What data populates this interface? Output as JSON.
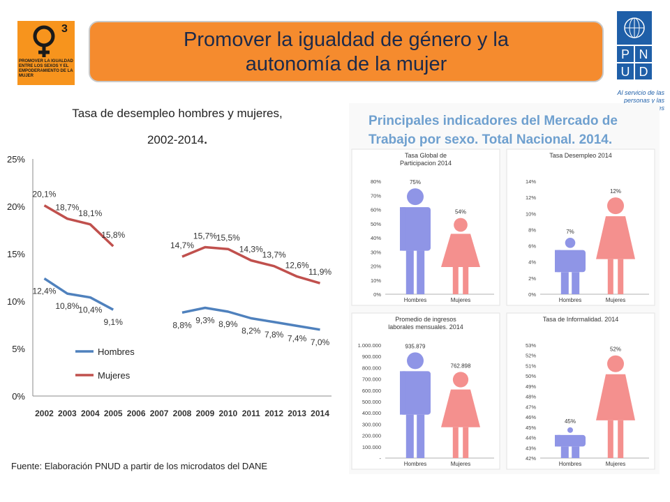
{
  "header": {
    "title": "Promover la igualdad de género y la autonomía de la mujer",
    "title_line1": "Promover la igualdad de género y la",
    "title_line2": "autonomía de la mujer",
    "mdg_number": "3",
    "mdg_caption": "PROMOVER LA IGUALDAD ENTRE LOS SEXOS Y EL EMPODERAMIENTO DE LA MUJER",
    "org_letters": [
      "P",
      "N",
      "U",
      "D"
    ],
    "org_tagline": "Al servicio de las personas y las naciones"
  },
  "colors": {
    "orange": "#f58b2e",
    "hombres": "#4f81bd",
    "mujeres": "#c0504d",
    "blue_org": "#1f5fa8",
    "info_blue": "#8f95e6",
    "info_pink": "#f4908e"
  },
  "left_chart_title_line1": "Tasa de desempleo hombres y mujeres,",
  "left_chart_title_line2": "2002-2014",
  "source": "Fuente: Elaboración PNUD a partir de los microdatos del DANE",
  "chart_data": [
    {
      "type": "line",
      "x": [
        "2002",
        "2003",
        "2004",
        "2005",
        "2006",
        "2007",
        "2008",
        "2009",
        "2010",
        "2011",
        "2012",
        "2013",
        "2014"
      ],
      "ylim": [
        0,
        25
      ],
      "yticks": [
        "0%",
        "5%",
        "10%",
        "15%",
        "20%",
        "25%"
      ],
      "legend_position": "bottom-left",
      "series": [
        {
          "name": "Hombres",
          "color": "#4f81bd",
          "values": [
            12.4,
            10.8,
            10.4,
            9.1,
            null,
            null,
            8.8,
            9.3,
            8.9,
            8.2,
            7.8,
            7.4,
            7.0
          ],
          "labels": [
            "12,4%",
            "10,8%",
            "10,4%",
            "9,1%",
            "",
            "",
            "8,8%",
            "9,3%",
            "8,9%",
            "8,2%",
            "7,8%",
            "7,4%",
            "7,0%"
          ]
        },
        {
          "name": "Mujeres",
          "color": "#c0504d",
          "values": [
            20.1,
            18.7,
            18.1,
            15.8,
            null,
            null,
            14.7,
            15.7,
            15.5,
            14.3,
            13.7,
            12.6,
            11.9
          ],
          "labels": [
            "20,1%",
            "18,7%",
            "18,1%",
            "15,8%",
            "",
            "",
            "14,7%",
            "15,7%",
            "15,5%",
            "14,3%",
            "13,7%",
            "12,6%",
            "11,9%"
          ]
        }
      ]
    },
    {
      "type": "bar",
      "title": "Tasa Global de Participacion 2014",
      "categories": [
        "Hombres",
        "Mujeres"
      ],
      "values": [
        75,
        54
      ],
      "labels": [
        "75%",
        "54%"
      ],
      "ylim": [
        0,
        80
      ],
      "yticks": [
        "0%",
        "10%",
        "20%",
        "30%",
        "40%",
        "50%",
        "60%",
        "70%",
        "80%"
      ]
    },
    {
      "type": "bar",
      "title": "Tasa Desempleo 2014",
      "categories": [
        "Hombres",
        "Mujeres"
      ],
      "values": [
        7,
        12
      ],
      "labels": [
        "7%",
        "12%"
      ],
      "ylim": [
        0,
        14
      ],
      "yticks": [
        "0%",
        "2%",
        "4%",
        "6%",
        "8%",
        "10%",
        "12%",
        "14%"
      ]
    },
    {
      "type": "bar",
      "title": "Promedio de ingresos laborales mensuales. 2014",
      "categories": [
        "Hombres",
        "Mujeres"
      ],
      "values": [
        935879,
        762898
      ],
      "labels": [
        "935.879",
        "762.898"
      ],
      "ylim": [
        0,
        1000000
      ],
      "yticks": [
        "-",
        "100.000",
        "200.000",
        "300.000",
        "400.000",
        "500.000",
        "600.000",
        "700.000",
        "800.000",
        "900.000",
        "1.000.000"
      ]
    },
    {
      "type": "bar",
      "title": "Tasa de Informalidad. 2014",
      "categories": [
        "Hombres",
        "Mujeres"
      ],
      "values": [
        45,
        52
      ],
      "labels": [
        "45%",
        "52%"
      ],
      "ylim": [
        42,
        53
      ],
      "yticks": [
        "42%",
        "43%",
        "44%",
        "45%",
        "46%",
        "47%",
        "48%",
        "49%",
        "50%",
        "51%",
        "52%",
        "53%"
      ]
    }
  ],
  "infographic_title": "Principales indicadores del Mercado de Trabajo por sexo. Total Nacional. 2014."
}
